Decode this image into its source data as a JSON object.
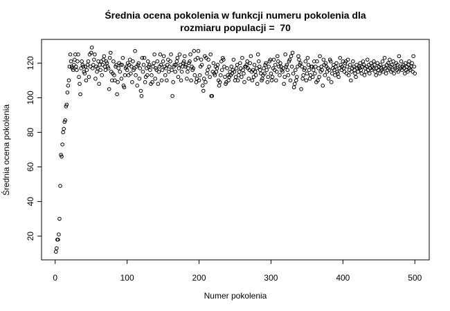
{
  "chart_data": {
    "type": "scatter",
    "title": [
      "Średnia ocena pokolenia w funkcji numeru pokolenia dla",
      "rozmiaru populacji =  70"
    ],
    "x_label": "Numer pokolenia",
    "y_label": "Średnia ocena pokolenia",
    "color": "#000000",
    "grid": false,
    "xlim": [
      -18.96,
      519.96
    ],
    "ylim": [
      6.3,
      133.7
    ],
    "xticks": [
      0,
      100,
      200,
      300,
      400,
      500
    ],
    "yticks": [
      20,
      40,
      60,
      80,
      100,
      120
    ],
    "x": [
      1,
      2,
      3,
      4,
      5,
      6,
      7,
      8,
      9,
      10,
      11,
      12,
      13,
      14,
      15,
      16,
      17,
      18,
      19,
      20,
      21,
      22,
      23,
      24,
      25,
      26,
      27,
      28,
      29,
      30,
      31,
      32,
      33,
      34,
      35,
      36,
      37,
      38,
      39,
      40,
      41,
      42,
      43,
      44,
      45,
      46,
      47,
      48,
      49,
      50,
      51,
      52,
      53,
      54,
      55,
      56,
      57,
      58,
      59,
      60,
      61,
      62,
      63,
      64,
      65,
      66,
      67,
      68,
      69,
      70,
      71,
      72,
      73,
      74,
      75,
      76,
      77,
      78,
      79,
      80,
      81,
      82,
      83,
      84,
      85,
      86,
      87,
      88,
      89,
      90,
      91,
      92,
      93,
      94,
      95,
      96,
      97,
      98,
      99,
      100,
      101,
      102,
      103,
      104,
      105,
      106,
      107,
      108,
      109,
      110,
      111,
      112,
      113,
      114,
      115,
      116,
      117,
      118,
      119,
      120,
      121,
      122,
      123,
      124,
      125,
      126,
      127,
      128,
      129,
      130,
      131,
      132,
      133,
      134,
      135,
      136,
      137,
      138,
      139,
      140,
      141,
      142,
      143,
      144,
      145,
      146,
      147,
      148,
      149,
      150,
      151,
      152,
      153,
      154,
      155,
      156,
      157,
      158,
      159,
      160,
      161,
      162,
      163,
      164,
      165,
      166,
      167,
      168,
      169,
      170,
      171,
      172,
      173,
      174,
      175,
      176,
      177,
      178,
      179,
      180,
      181,
      182,
      183,
      184,
      185,
      186,
      187,
      188,
      189,
      190,
      191,
      192,
      193,
      194,
      195,
      196,
      197,
      198,
      199,
      200,
      201,
      202,
      203,
      204,
      205,
      206,
      207,
      208,
      209,
      210,
      211,
      212,
      213,
      214,
      215,
      216,
      217,
      218,
      219,
      220,
      221,
      222,
      223,
      224,
      225,
      226,
      227,
      228,
      229,
      230,
      231,
      232,
      233,
      234,
      235,
      236,
      237,
      238,
      239,
      240,
      241,
      242,
      243,
      244,
      245,
      246,
      247,
      248,
      249,
      250,
      251,
      252,
      253,
      254,
      255,
      256,
      257,
      258,
      259,
      260,
      261,
      262,
      263,
      264,
      265,
      266,
      267,
      268,
      269,
      270,
      271,
      272,
      273,
      274,
      275,
      276,
      277,
      278,
      279,
      280,
      281,
      282,
      283,
      284,
      285,
      286,
      287,
      288,
      289,
      290,
      291,
      292,
      293,
      294,
      295,
      296,
      297,
      298,
      299,
      300,
      301,
      302,
      303,
      304,
      305,
      306,
      307,
      308,
      309,
      310,
      311,
      312,
      313,
      314,
      315,
      316,
      317,
      318,
      319,
      320,
      321,
      322,
      323,
      324,
      325,
      326,
      327,
      328,
      329,
      330,
      331,
      332,
      333,
      334,
      335,
      336,
      337,
      338,
      339,
      340,
      341,
      342,
      343,
      344,
      345,
      346,
      347,
      348,
      349,
      350,
      351,
      352,
      353,
      354,
      355,
      356,
      357,
      358,
      359,
      360,
      361,
      362,
      363,
      364,
      365,
      366,
      367,
      368,
      369,
      370,
      371,
      372,
      373,
      374,
      375,
      376,
      377,
      378,
      379,
      380,
      381,
      382,
      383,
      384,
      385,
      386,
      387,
      388,
      389,
      390,
      391,
      392,
      393,
      394,
      395,
      396,
      397,
      398,
      399,
      400,
      401,
      402,
      403,
      404,
      405,
      406,
      407,
      408,
      409,
      410,
      411,
      412,
      413,
      414,
      415,
      416,
      417,
      418,
      419,
      420,
      421,
      422,
      423,
      424,
      425,
      426,
      427,
      428,
      429,
      430,
      431,
      432,
      433,
      434,
      435,
      436,
      437,
      438,
      439,
      440,
      441,
      442,
      443,
      444,
      445,
      446,
      447,
      448,
      449,
      450,
      451,
      452,
      453,
      454,
      455,
      456,
      457,
      458,
      459,
      460,
      461,
      462,
      463,
      464,
      465,
      466,
      467,
      468,
      469,
      470,
      471,
      472,
      473,
      474,
      475,
      476,
      477,
      478,
      479,
      480,
      481,
      482,
      483,
      484,
      485,
      486,
      487,
      488,
      489,
      490,
      491,
      492,
      493,
      494,
      495,
      496,
      497,
      498,
      499,
      500
    ],
    "values": [
      11,
      13,
      18,
      18,
      21,
      30,
      49,
      67,
      66,
      73,
      80,
      82,
      86,
      87,
      95,
      96,
      103,
      107,
      110,
      118,
      125,
      121,
      118,
      117,
      116,
      119,
      122,
      125,
      118,
      116,
      121,
      125,
      112,
      108,
      102,
      117,
      121,
      119,
      118,
      115,
      114,
      118,
      110,
      116,
      119,
      121,
      112,
      125,
      118,
      126,
      129,
      117,
      119,
      122,
      125,
      111,
      118,
      115,
      117,
      121,
      108,
      119,
      116,
      121,
      113,
      119,
      122,
      124,
      118,
      116,
      121,
      120,
      118,
      117,
      105,
      123,
      126,
      115,
      110,
      114,
      121,
      113,
      110,
      118,
      119,
      102,
      109,
      117,
      120,
      115,
      119,
      111,
      119,
      123,
      107,
      106,
      113,
      117,
      118,
      116,
      120,
      113,
      119,
      122,
      114,
      118,
      109,
      121,
      116,
      117,
      127,
      113,
      118,
      107,
      119,
      120,
      111,
      117,
      104,
      101,
      123,
      115,
      119,
      123,
      109,
      112,
      117,
      113,
      121,
      118,
      119,
      116,
      108,
      113,
      109,
      118,
      120,
      125,
      111,
      117,
      116,
      121,
      108,
      115,
      118,
      125,
      119,
      110,
      116,
      121,
      124,
      118,
      113,
      117,
      110,
      119,
      122,
      115,
      118,
      121,
      125,
      116,
      101,
      109,
      118,
      119,
      115,
      119,
      121,
      123,
      112,
      117,
      125,
      119,
      110,
      115,
      118,
      120,
      121,
      124,
      118,
      119,
      111,
      115,
      117,
      120,
      121,
      125,
      110,
      118,
      116,
      117,
      127,
      113,
      122,
      109,
      111,
      123,
      127,
      110,
      113,
      118,
      122,
      119,
      107,
      104,
      111,
      124,
      109,
      123,
      114,
      116,
      122,
      118,
      112,
      125,
      101,
      101,
      115,
      120,
      114,
      113,
      118,
      115,
      117,
      119,
      110,
      107,
      109,
      113,
      121,
      116,
      123,
      122,
      118,
      112,
      108,
      109,
      117,
      113,
      110,
      112,
      115,
      113,
      118,
      114,
      116,
      122,
      115,
      110,
      112,
      117,
      119,
      110,
      113,
      115,
      120,
      117,
      112,
      123,
      116,
      114,
      109,
      118,
      118,
      119,
      121,
      117,
      111,
      116,
      120,
      124,
      115,
      110,
      116,
      112,
      119,
      115,
      113,
      117,
      108,
      125,
      121,
      118,
      116,
      114,
      110,
      111,
      113,
      117,
      114,
      119,
      120,
      116,
      109,
      112,
      118,
      121,
      122,
      114,
      110,
      112,
      117,
      122,
      116,
      119,
      110,
      115,
      124,
      121,
      118,
      113,
      120,
      118,
      116,
      115,
      117,
      108,
      112,
      125,
      118,
      119,
      116,
      113,
      121,
      122,
      110,
      124,
      118,
      126,
      114,
      106,
      108,
      116,
      110,
      112,
      118,
      124,
      122,
      119,
      120,
      105,
      118,
      111,
      113,
      116,
      117,
      121,
      110,
      114,
      123,
      119,
      116,
      111,
      113,
      118,
      118,
      112,
      116,
      121,
      114,
      118,
      109,
      121,
      110,
      117,
      112,
      124,
      115,
      118,
      116,
      107,
      122,
      119,
      113,
      120,
      118,
      115,
      117,
      111,
      116,
      122,
      121,
      109,
      114,
      117,
      119,
      116,
      113,
      118,
      120,
      115,
      114,
      112,
      117,
      123,
      119,
      116,
      118,
      121,
      117,
      115,
      120,
      121,
      114,
      118,
      122,
      113,
      116,
      119,
      110,
      115,
      117,
      121,
      118,
      116,
      114,
      112,
      119,
      117,
      115,
      118,
      117,
      120,
      116,
      114,
      118,
      121,
      119,
      113,
      117,
      115,
      118,
      122,
      116,
      119,
      114,
      117,
      120,
      116,
      118,
      117,
      121,
      119,
      115,
      113,
      117,
      120,
      116,
      118,
      114,
      119,
      117,
      116,
      121,
      115,
      118,
      123,
      117,
      114,
      119,
      116,
      120,
      117,
      122,
      118,
      115,
      119,
      116,
      121,
      114,
      118,
      117,
      120,
      116,
      119,
      115,
      124,
      118,
      117,
      121,
      116,
      118,
      119,
      117,
      114,
      120,
      116,
      118,
      115,
      119,
      121,
      117,
      116,
      118,
      120,
      115,
      124,
      118,
      114
    ]
  }
}
